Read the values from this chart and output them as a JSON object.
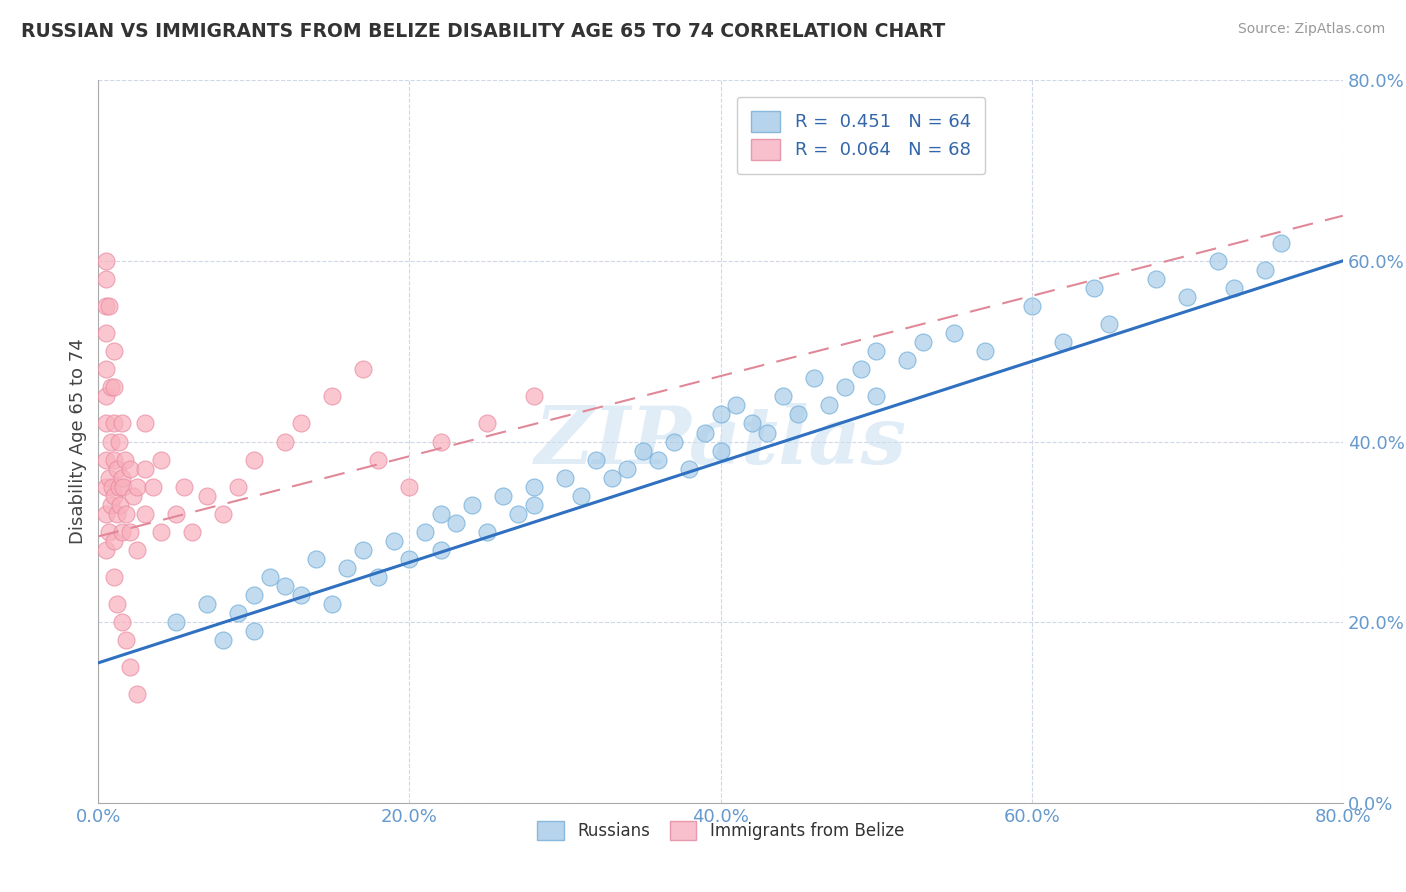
{
  "title": "RUSSIAN VS IMMIGRANTS FROM BELIZE DISABILITY AGE 65 TO 74 CORRELATION CHART",
  "source": "Source: ZipAtlas.com",
  "ylabel_label": "Disability Age 65 to 74",
  "legend_r1": "R =  0.451",
  "legend_n1": "N = 64",
  "legend_r2": "R =  0.064",
  "legend_n2": "N = 68",
  "label_russians": "Russians",
  "label_belize": "Immigrants from Belize",
  "xmin": 0.0,
  "xmax": 0.8,
  "ymin": 0.0,
  "ymax": 0.8,
  "russian_color": "#a8cce8",
  "russian_edge": "#6aaad8",
  "russian_line_color": "#3070c0",
  "belize_color": "#f8b0bc",
  "belize_edge": "#e888a0",
  "belize_line_color": "#e08898",
  "grid_color": "#d0d8e8",
  "background_color": "#ffffff",
  "watermark": "ZIPatlas",
  "watermark_color": "#c8ddf0",
  "title_color": "#333333",
  "source_color": "#999999",
  "tick_color": "#6699cc",
  "blue_line_x0": 0.0,
  "blue_line_y0": 0.155,
  "blue_line_x1": 0.8,
  "blue_line_y1": 0.6,
  "pink_line_x0": 0.0,
  "pink_line_y0": 0.295,
  "pink_line_x1": 0.8,
  "pink_line_y1": 0.65,
  "russians_x": [
    0.05,
    0.07,
    0.08,
    0.09,
    0.1,
    0.1,
    0.11,
    0.12,
    0.13,
    0.14,
    0.15,
    0.16,
    0.17,
    0.18,
    0.19,
    0.2,
    0.21,
    0.22,
    0.22,
    0.23,
    0.24,
    0.25,
    0.26,
    0.27,
    0.28,
    0.28,
    0.3,
    0.31,
    0.32,
    0.33,
    0.34,
    0.35,
    0.36,
    0.37,
    0.38,
    0.39,
    0.4,
    0.4,
    0.41,
    0.42,
    0.43,
    0.44,
    0.45,
    0.46,
    0.47,
    0.48,
    0.49,
    0.5,
    0.5,
    0.52,
    0.53,
    0.55,
    0.57,
    0.6,
    0.62,
    0.64,
    0.65,
    0.68,
    0.7,
    0.72,
    0.73,
    0.75,
    0.76,
    0.5
  ],
  "russians_y": [
    0.2,
    0.22,
    0.18,
    0.21,
    0.23,
    0.19,
    0.25,
    0.24,
    0.23,
    0.27,
    0.22,
    0.26,
    0.28,
    0.25,
    0.29,
    0.27,
    0.3,
    0.28,
    0.32,
    0.31,
    0.33,
    0.3,
    0.34,
    0.32,
    0.35,
    0.33,
    0.36,
    0.34,
    0.38,
    0.36,
    0.37,
    0.39,
    0.38,
    0.4,
    0.37,
    0.41,
    0.43,
    0.39,
    0.44,
    0.42,
    0.41,
    0.45,
    0.43,
    0.47,
    0.44,
    0.46,
    0.48,
    0.45,
    0.5,
    0.49,
    0.51,
    0.52,
    0.5,
    0.55,
    0.51,
    0.57,
    0.53,
    0.58,
    0.56,
    0.6,
    0.57,
    0.59,
    0.62,
    0.71
  ],
  "belize_x": [
    0.005,
    0.005,
    0.005,
    0.005,
    0.005,
    0.005,
    0.005,
    0.005,
    0.005,
    0.005,
    0.007,
    0.007,
    0.008,
    0.008,
    0.008,
    0.009,
    0.01,
    0.01,
    0.01,
    0.01,
    0.01,
    0.01,
    0.012,
    0.012,
    0.013,
    0.013,
    0.014,
    0.015,
    0.015,
    0.015,
    0.016,
    0.017,
    0.018,
    0.02,
    0.02,
    0.022,
    0.025,
    0.025,
    0.03,
    0.03,
    0.03,
    0.035,
    0.04,
    0.04,
    0.05,
    0.055,
    0.06,
    0.07,
    0.08,
    0.09,
    0.1,
    0.12,
    0.13,
    0.15,
    0.17,
    0.18,
    0.2,
    0.22,
    0.25,
    0.28,
    0.005,
    0.007,
    0.01,
    0.012,
    0.015,
    0.018,
    0.02,
    0.025
  ],
  "belize_y": [
    0.28,
    0.32,
    0.35,
    0.38,
    0.42,
    0.45,
    0.48,
    0.52,
    0.55,
    0.58,
    0.3,
    0.36,
    0.33,
    0.4,
    0.46,
    0.35,
    0.29,
    0.34,
    0.38,
    0.42,
    0.46,
    0.5,
    0.32,
    0.37,
    0.35,
    0.4,
    0.33,
    0.3,
    0.36,
    0.42,
    0.35,
    0.38,
    0.32,
    0.3,
    0.37,
    0.34,
    0.28,
    0.35,
    0.32,
    0.37,
    0.42,
    0.35,
    0.3,
    0.38,
    0.32,
    0.35,
    0.3,
    0.34,
    0.32,
    0.35,
    0.38,
    0.4,
    0.42,
    0.45,
    0.48,
    0.38,
    0.35,
    0.4,
    0.42,
    0.45,
    0.6,
    0.55,
    0.25,
    0.22,
    0.2,
    0.18,
    0.15,
    0.12
  ]
}
